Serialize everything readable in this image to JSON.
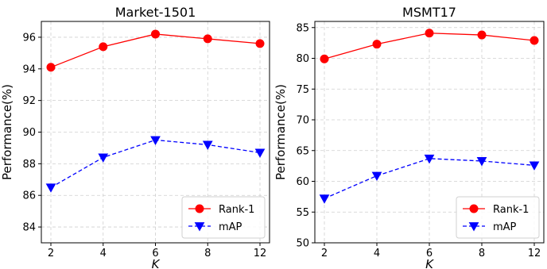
{
  "chart_data": [
    {
      "type": "line",
      "title": "Market-1501",
      "xlabel": "K",
      "ylabel": "Performance(%)",
      "categories": [
        "2",
        "4",
        "6",
        "8",
        "12"
      ],
      "ylim": [
        83,
        97
      ],
      "yticks": [
        84,
        86,
        88,
        90,
        92,
        94,
        96
      ],
      "grid": true,
      "legend_position": "bottom-right",
      "series": [
        {
          "name": "Rank-1",
          "values": [
            94.1,
            95.4,
            96.2,
            95.9,
            95.6
          ],
          "color": "#ff0000",
          "marker": "circle",
          "dash": "solid"
        },
        {
          "name": "mAP",
          "values": [
            86.5,
            88.4,
            89.5,
            89.2,
            88.7
          ],
          "color": "#0000ff",
          "marker": "triangle-down",
          "dash": "dashed"
        }
      ]
    },
    {
      "type": "line",
      "title": "MSMT17",
      "xlabel": "K",
      "ylabel": "Performance(%)",
      "categories": [
        "2",
        "4",
        "6",
        "8",
        "12"
      ],
      "ylim": [
        50,
        86
      ],
      "yticks": [
        50,
        55,
        60,
        65,
        70,
        75,
        80,
        85
      ],
      "grid": true,
      "legend_position": "bottom-right",
      "series": [
        {
          "name": "Rank-1",
          "values": [
            79.9,
            82.3,
            84.1,
            83.8,
            82.9
          ],
          "color": "#ff0000",
          "marker": "circle",
          "dash": "solid"
        },
        {
          "name": "mAP",
          "values": [
            57.2,
            60.9,
            63.7,
            63.3,
            62.6
          ],
          "color": "#0000ff",
          "marker": "triangle-down",
          "dash": "dashed"
        }
      ]
    }
  ]
}
